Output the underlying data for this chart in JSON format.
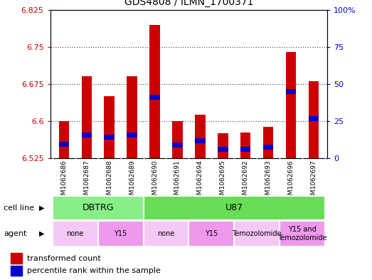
{
  "title": "GDS4808 / ILMN_1700371",
  "samples": [
    "GSM1062686",
    "GSM1062687",
    "GSM1062688",
    "GSM1062689",
    "GSM1062690",
    "GSM1062691",
    "GSM1062694",
    "GSM1062695",
    "GSM1062692",
    "GSM1062693",
    "GSM1062696",
    "GSM1062697"
  ],
  "red_values": [
    6.6,
    6.69,
    6.65,
    6.69,
    6.795,
    6.6,
    6.613,
    6.575,
    6.577,
    6.588,
    6.74,
    6.68
  ],
  "blue_values": [
    6.553,
    6.572,
    6.568,
    6.572,
    6.648,
    6.552,
    6.561,
    6.543,
    6.543,
    6.548,
    6.66,
    6.605
  ],
  "bar_base": 6.525,
  "ylim_left": [
    6.525,
    6.825
  ],
  "ylim_right": [
    0,
    100
  ],
  "yticks_left": [
    6.525,
    6.6,
    6.675,
    6.75,
    6.825
  ],
  "yticks_right": [
    0,
    25,
    50,
    75,
    100
  ],
  "ytick_labels_left": [
    "6.525",
    "6.6",
    "6.675",
    "6.75",
    "6.825"
  ],
  "ytick_labels_right": [
    "0",
    "25",
    "50",
    "75",
    "100%"
  ],
  "cell_line_groups": [
    {
      "label": "DBTRG",
      "start": 0,
      "end": 3,
      "color": "#88ee88"
    },
    {
      "label": "U87",
      "start": 4,
      "end": 11,
      "color": "#66dd55"
    }
  ],
  "agent_groups": [
    {
      "label": "none",
      "start": 0,
      "end": 1,
      "color": "#f5c8f5"
    },
    {
      "label": "Y15",
      "start": 2,
      "end": 3,
      "color": "#ee99ee"
    },
    {
      "label": "none",
      "start": 4,
      "end": 5,
      "color": "#f5c8f5"
    },
    {
      "label": "Y15",
      "start": 6,
      "end": 7,
      "color": "#ee99ee"
    },
    {
      "label": "Temozolomide",
      "start": 8,
      "end": 9,
      "color": "#f5c8f5"
    },
    {
      "label": "Y15 and\nTemozolomide",
      "start": 10,
      "end": 11,
      "color": "#ee99ee"
    }
  ],
  "legend_red": "transformed count",
  "legend_blue": "percentile rank within the sample",
  "bar_width": 0.45,
  "red_color": "#cc0000",
  "blue_color": "#0000cc",
  "grid_color": "#555555",
  "bg_color": "#ffffff",
  "plot_bg": "#ffffff",
  "left_axis_color": "#cc0000",
  "right_axis_color": "#0000cc",
  "blue_bar_height": 0.01
}
